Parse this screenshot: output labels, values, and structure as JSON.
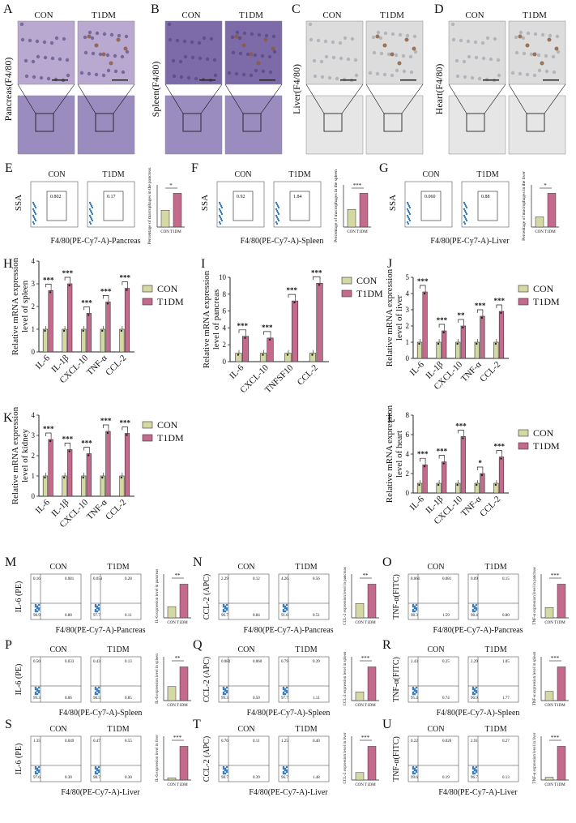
{
  "groups": {
    "con": "CON",
    "t1dm": "T1DM"
  },
  "colors": {
    "con": "#d4d9a3",
    "t1dm": "#c46a8c",
    "stroke": "#333333",
    "he_stain": "#b9a8cf",
    "brown": "#8a5a3a"
  },
  "panel_letters": [
    "A",
    "B",
    "C",
    "D",
    "E",
    "F",
    "G",
    "H",
    "I",
    "J",
    "K",
    "L",
    "M",
    "N",
    "O",
    "P",
    "Q",
    "R",
    "S",
    "T",
    "U"
  ],
  "histology": [
    {
      "letter": "A",
      "ylabel": "Pancreas(F4/80)"
    },
    {
      "letter": "B",
      "ylabel": "Spleen(F4/80)"
    },
    {
      "letter": "C",
      "ylabel": "Liver(F4/80)"
    },
    {
      "letter": "D",
      "ylabel": "Heart(F4/80)"
    }
  ],
  "flow_f480": [
    {
      "letter": "E",
      "yaxis": "SSA",
      "xaxis": "F4/80(PE-Cy7-A)-Pancreas",
      "gate_con": "0.802",
      "gate_t1dm": "0.17",
      "bar_ylabel": "Percentage of macrophages in the pancreas",
      "sig": "*",
      "values": [
        0.8,
        1.6
      ]
    },
    {
      "letter": "F",
      "yaxis": "SSA",
      "xaxis": "F4/80(PE-Cy7-A)-Spleen",
      "gate_con": "0.92",
      "gate_t1dm": "1.84",
      "bar_ylabel": "Percentage of macrophages in the spleen",
      "sig": "***",
      "values": [
        1.1,
        2.1
      ]
    },
    {
      "letter": "G",
      "yaxis": "SSA",
      "xaxis": "F4/80(PE-Cy7-A)-Liver",
      "gate_con": "0.060",
      "gate_t1dm": "0.88",
      "bar_ylabel": "Percentage of macrophages in the liver",
      "sig": "*",
      "values": [
        0.3,
        1.0
      ]
    }
  ],
  "chart_data": [
    {
      "letter": "H",
      "type": "bar",
      "ylabel": "Relative mRNA expression level of spleen",
      "ylim": [
        0,
        4
      ],
      "yticks": [
        0,
        1,
        2,
        3,
        4
      ],
      "categories": [
        "IL-6",
        "IL-1β",
        "CXCL-10",
        "TNF-α",
        "CCL-2"
      ],
      "series": [
        {
          "name": "CON",
          "values": [
            1.0,
            1.0,
            1.0,
            1.0,
            1.0
          ]
        },
        {
          "name": "T1DM",
          "values": [
            2.7,
            3.0,
            1.7,
            2.2,
            2.8
          ]
        }
      ],
      "sig": [
        "***",
        "***",
        "***",
        "***",
        "***"
      ]
    },
    {
      "letter": "I",
      "type": "bar",
      "ylabel": "Relative mRNA expression level of pancreas",
      "ylim": [
        0,
        10
      ],
      "yticks": [
        0,
        2,
        4,
        6,
        8,
        10
      ],
      "categories": [
        "IL-6",
        "CXCL-10",
        "TNFSF10",
        "CCL-2"
      ],
      "series": [
        {
          "name": "CON",
          "values": [
            1.0,
            1.0,
            1.0,
            1.0
          ]
        },
        {
          "name": "T1DM",
          "values": [
            3.0,
            2.8,
            7.2,
            9.3
          ]
        }
      ],
      "sig": [
        "***",
        "***",
        "***",
        "***"
      ]
    },
    {
      "letter": "J",
      "type": "bar",
      "ylabel": "Relative mRNA expression level of liver",
      "ylim": [
        0,
        5
      ],
      "yticks": [
        0,
        1,
        2,
        3,
        4,
        5
      ],
      "categories": [
        "IL-6",
        "IL-1β",
        "CXCL-10",
        "TNF-α",
        "CCL-2"
      ],
      "series": [
        {
          "name": "CON",
          "values": [
            1.0,
            1.0,
            1.0,
            1.0,
            1.0
          ]
        },
        {
          "name": "T1DM",
          "values": [
            4.1,
            1.7,
            2.0,
            2.6,
            2.9
          ]
        }
      ],
      "sig": [
        "***",
        "***",
        "**",
        "***",
        "***"
      ]
    },
    {
      "letter": "K",
      "type": "bar",
      "ylabel": "Relative mRNA expression level of kidney",
      "ylim": [
        0,
        4
      ],
      "yticks": [
        0,
        1,
        2,
        3,
        4
      ],
      "categories": [
        "IL-6",
        "IL-1β",
        "CXCL-10",
        "TNF-α",
        "CCL-2"
      ],
      "series": [
        {
          "name": "CON",
          "values": [
            1.0,
            1.0,
            1.0,
            1.0,
            1.0
          ]
        },
        {
          "name": "T1DM",
          "values": [
            2.8,
            2.3,
            2.1,
            3.2,
            3.1
          ]
        }
      ],
      "sig": [
        "***",
        "***",
        "***",
        "***",
        "***"
      ]
    },
    {
      "letter": "L",
      "type": "bar",
      "ylabel": "Relative mRNA expression level of heart",
      "ylim": [
        0,
        8
      ],
      "yticks": [
        0,
        2,
        4,
        6,
        8
      ],
      "categories": [
        "IL-6",
        "IL-1β",
        "CXCL-10",
        "TNF-α",
        "CCL-2"
      ],
      "series": [
        {
          "name": "CON",
          "values": [
            1.0,
            1.0,
            1.0,
            1.0,
            1.0
          ]
        },
        {
          "name": "T1DM",
          "values": [
            2.9,
            3.2,
            5.8,
            2.0,
            3.7
          ]
        }
      ],
      "sig": [
        "***",
        "***",
        "***",
        "*",
        "***"
      ]
    }
  ],
  "flow_quad": [
    {
      "letter": "M",
      "yaxis": "IL-6 (PE)",
      "xaxis": "F4/80(PE-Cy7-A)-Pancreas",
      "con": [
        "0.16",
        "0.081",
        "98.9",
        "0.80"
      ],
      "t1dm": [
        "0.053",
        "0.28",
        "97.7",
        "0.11"
      ],
      "bar_ylabel": "IL-6 expression level in pancreas",
      "sig": "**",
      "values": [
        0.08,
        0.24
      ]
    },
    {
      "letter": "N",
      "yaxis": "CCL-2 (APC)",
      "xaxis": "F4/80(PE-Cy7-A)-Pancreas",
      "con": [
        "2.29",
        "0.12",
        "96.7",
        "0.84"
      ],
      "t1dm": [
        "4.26",
        "0.56",
        "91.6",
        "0.51"
      ],
      "bar_ylabel": "CCL-2 expression level in pancreas",
      "sig": "**",
      "values": [
        0.12,
        0.28
      ]
    },
    {
      "letter": "O",
      "yaxis": "TNF-α(FITC)",
      "xaxis": "F4/80(PE-Cy7-A)-Pancreas",
      "con": [
        "0.061",
        "0.081",
        "98.3",
        "1.59"
      ],
      "t1dm": [
        "0.09",
        "0.15",
        "98.4",
        "0.80"
      ],
      "bar_ylabel": "TNF-α expression level in pancreas",
      "sig": "***",
      "values": [
        0.04,
        0.13
      ]
    },
    {
      "letter": "P",
      "yaxis": "IL-6 (PE)",
      "xaxis": "F4/80(PE-Cy7-A)-Spleen",
      "con": [
        "0.50",
        "0.033",
        "99.3",
        "0.06"
      ],
      "t1dm": [
        "0.43",
        "0.13",
        "98.5",
        "0.85"
      ],
      "bar_ylabel": "IL-6 expression level in spleen",
      "sig": "**",
      "values": [
        0.05,
        0.12
      ]
    },
    {
      "letter": "Q",
      "yaxis": "CCL-2 (APC)",
      "xaxis": "F4/80(PE-Cy7-A)-Spleen",
      "con": [
        "0.083",
        "0.060",
        "99.3",
        "0.50"
      ],
      "t1dm": [
        "0.79",
        "0.39",
        "97.7",
        "1.11"
      ],
      "bar_ylabel": "CCL-2 expression level in spleen",
      "sig": "***",
      "values": [
        0.09,
        0.35
      ]
    },
    {
      "letter": "R",
      "yaxis": "TNF-α(FITC)",
      "xaxis": "F4/80(PE-Cy7-A)-Spleen",
      "con": [
        "2.43",
        "0.25",
        "95.4",
        "0.74"
      ],
      "t1dm": [
        "2.29",
        "1.05",
        "96.9",
        "1.77"
      ],
      "bar_ylabel": "TNF-α expression level in spleen",
      "sig": "***",
      "values": [
        0.3,
        1.1
      ]
    },
    {
      "letter": "S",
      "yaxis": "IL-6 (PE)",
      "xaxis": "F4/80(PE-Cy7-A)-Liver",
      "con": [
        "1.35",
        "0.049",
        "97.6",
        "0.30"
      ],
      "t1dm": [
        "0.47",
        "0.55",
        "98.7",
        "0.30"
      ],
      "bar_ylabel": "IL-6 expression level in liver",
      "sig": "***",
      "values": [
        0.03,
        0.45
      ]
    },
    {
      "letter": "T",
      "yaxis": "CCL-2 (APC)",
      "xaxis": "F4/80(PE-Cy7-A)-Liver",
      "con": [
        "0.76",
        "0.11",
        "98.7",
        "0.39"
      ],
      "t1dm": [
        "1.25",
        "0.40",
        "96.7",
        "1.48"
      ],
      "bar_ylabel": "CCL-2 expression level in liver",
      "sig": "***",
      "values": [
        0.1,
        0.45
      ]
    },
    {
      "letter": "U",
      "yaxis": "TNF-α(FITC)",
      "xaxis": "F4/80(PE-Cy7-A)-Liver",
      "con": [
        "0.22",
        "0.020",
        "99.6",
        "0.19"
      ],
      "t1dm": [
        "2.91",
        "0.27",
        "96.7",
        "0.13"
      ],
      "bar_ylabel": "TNF-α expression level in liver",
      "sig": "***",
      "values": [
        0.02,
        0.25
      ]
    }
  ]
}
